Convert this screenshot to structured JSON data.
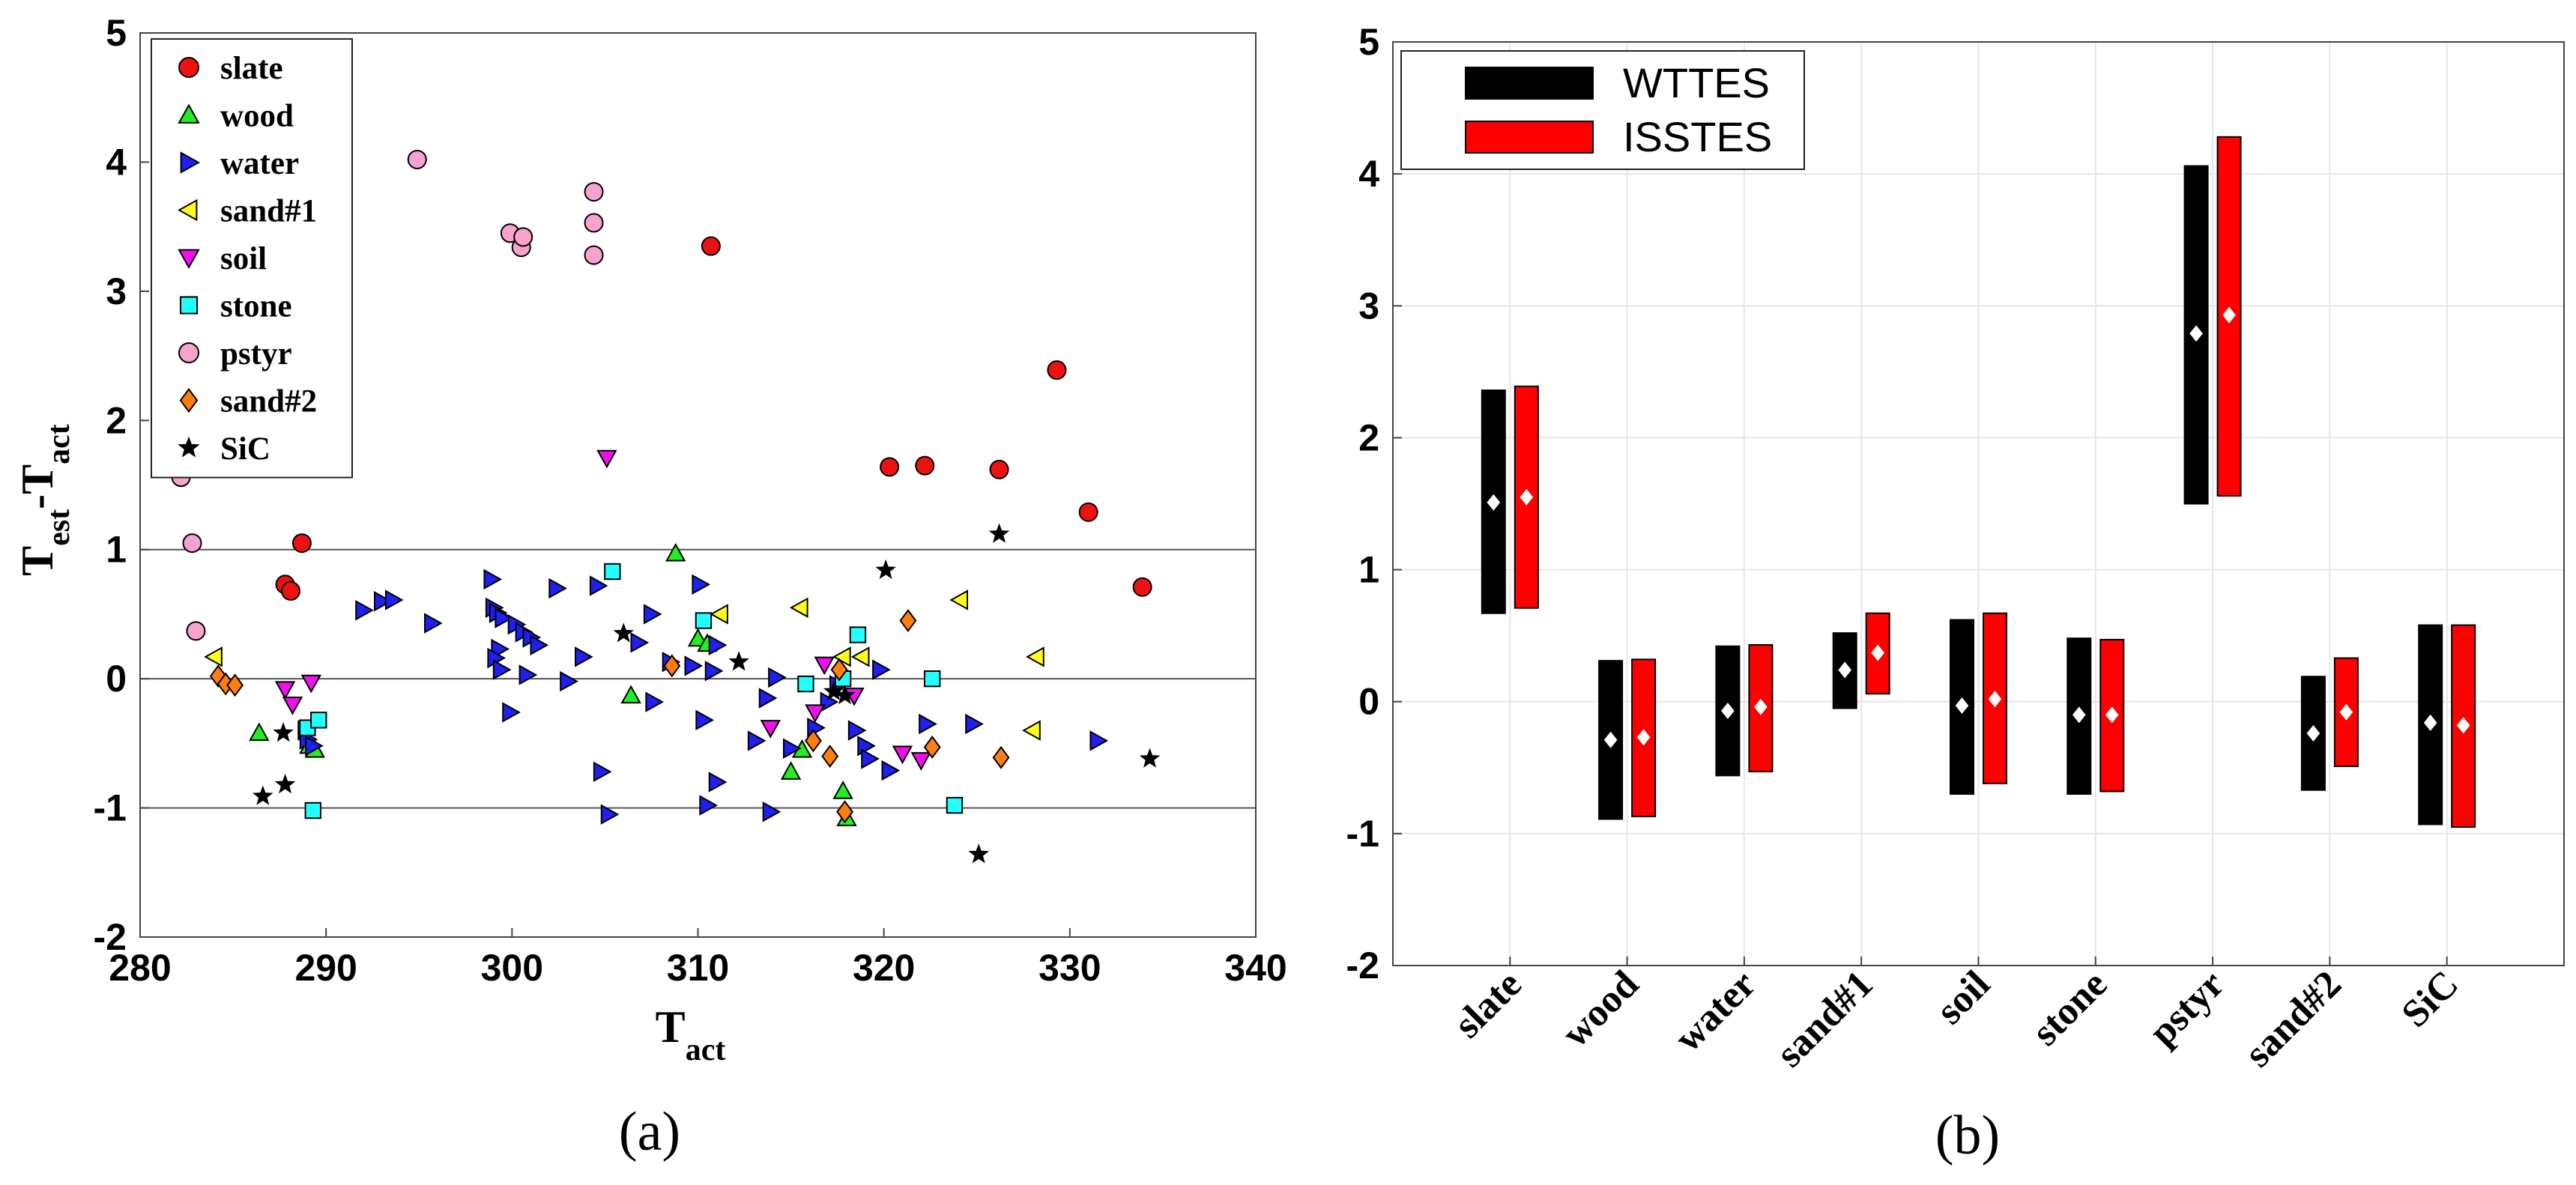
{
  "chart_data": [
    {
      "type": "scatter",
      "panel_label": "(a)",
      "xlabel": {
        "main": "T",
        "sub": "act"
      },
      "ylabel": {
        "parts": [
          {
            "t": "T"
          },
          {
            "t": "est",
            "sub": true
          },
          {
            "t": "-T"
          },
          {
            "t": "act",
            "sub": true
          }
        ]
      },
      "xlim": [
        280,
        340
      ],
      "ylim": [
        -2,
        5
      ],
      "xticks": [
        "280",
        "290",
        "300",
        "310",
        "320",
        "330",
        "340"
      ],
      "yticks": [
        "-2",
        "-1",
        "0",
        "1",
        "2",
        "3",
        "4",
        "5"
      ],
      "reference_lines": [
        -1,
        0,
        1
      ],
      "legend_position": "top-left",
      "series": [
        {
          "name": "slate",
          "marker": "circle",
          "color": "#ee1111",
          "points": [
            [
              287.8,
              0.73
            ],
            [
              288.1,
              0.68
            ],
            [
              288.7,
              1.05
            ],
            [
              310.7,
              3.35
            ],
            [
              320.3,
              1.64
            ],
            [
              322.2,
              1.65
            ],
            [
              326.2,
              1.62
            ],
            [
              329.3,
              2.39
            ],
            [
              331.0,
              1.29
            ],
            [
              333.9,
              0.71
            ]
          ]
        },
        {
          "name": "wood",
          "marker": "triangle-up",
          "color": "#22ee22",
          "points": [
            [
              286.4,
              -0.42
            ],
            [
              289.1,
              -0.52
            ],
            [
              289.4,
              -0.55
            ],
            [
              306.4,
              -0.13
            ],
            [
              308.8,
              0.97
            ],
            [
              310.0,
              0.31
            ],
            [
              310.5,
              0.27
            ],
            [
              315.0,
              -0.72
            ],
            [
              315.6,
              -0.55
            ],
            [
              317.8,
              -0.87
            ],
            [
              318.0,
              -1.08
            ]
          ]
        },
        {
          "name": "water",
          "marker": "triangle-right",
          "color": "#1f1fee",
          "points": [
            [
              288.9,
              -0.4
            ],
            [
              289.0,
              -0.47
            ],
            [
              289.3,
              -0.52
            ],
            [
              292.0,
              0.53
            ],
            [
              293.0,
              0.6
            ],
            [
              293.6,
              0.61
            ],
            [
              295.7,
              0.43
            ],
            [
              298.9,
              0.77
            ],
            [
              299.0,
              0.55
            ],
            [
              299.2,
              0.51
            ],
            [
              299.5,
              0.47
            ],
            [
              299.3,
              0.23
            ],
            [
              299.1,
              0.16
            ],
            [
              299.4,
              0.07
            ],
            [
              299.9,
              -0.26
            ],
            [
              300.2,
              0.42
            ],
            [
              300.6,
              0.36
            ],
            [
              301.0,
              0.32
            ],
            [
              301.4,
              0.26
            ],
            [
              300.8,
              0.03
            ],
            [
              302.4,
              0.7
            ],
            [
              303.8,
              0.17
            ],
            [
              304.6,
              0.72
            ],
            [
              304.8,
              -0.72
            ],
            [
              305.2,
              -1.05
            ],
            [
              306.8,
              0.28
            ],
            [
              307.6,
              -0.18
            ],
            [
              307.5,
              0.5
            ],
            [
              308.5,
              0.13
            ],
            [
              310.1,
              0.73
            ],
            [
              310.3,
              -0.32
            ],
            [
              310.5,
              -0.98
            ],
            [
              310.8,
              0.06
            ],
            [
              311.0,
              -0.8
            ],
            [
              311.0,
              0.26
            ],
            [
              313.1,
              -0.48
            ],
            [
              313.7,
              -0.15
            ],
            [
              313.9,
              -1.03
            ],
            [
              314.2,
              0.01
            ],
            [
              315.0,
              -0.54
            ],
            [
              316.3,
              -0.38
            ],
            [
              317.0,
              -0.18
            ],
            [
              317.5,
              -0.05
            ],
            [
              318.5,
              -0.4
            ],
            [
              319.0,
              -0.52
            ],
            [
              319.2,
              -0.62
            ],
            [
              319.8,
              0.07
            ],
            [
              320.3,
              -0.71
            ],
            [
              322.3,
              -0.35
            ],
            [
              324.8,
              -0.35
            ],
            [
              331.5,
              -0.48
            ],
            [
              309.7,
              0.1
            ],
            [
              303.0,
              -0.02
            ]
          ]
        },
        {
          "name": "sand#1",
          "marker": "triangle-left",
          "color": "#ffff1a",
          "points": [
            [
              284.0,
              0.17
            ],
            [
              311.2,
              0.5
            ],
            [
              315.5,
              0.55
            ],
            [
              317.8,
              0.17
            ],
            [
              318.8,
              0.17
            ],
            [
              324.1,
              0.61
            ],
            [
              328.2,
              0.17
            ],
            [
              328.0,
              -0.4
            ]
          ]
        },
        {
          "name": "soil",
          "marker": "triangle-down",
          "color": "#ee11ee",
          "points": [
            [
              287.8,
              -0.08
            ],
            [
              288.2,
              -0.2
            ],
            [
              289.2,
              -0.03
            ],
            [
              305.1,
              1.71
            ],
            [
              313.9,
              -0.38
            ],
            [
              316.3,
              -0.26
            ],
            [
              316.8,
              0.11
            ],
            [
              318.4,
              -0.13
            ],
            [
              321.0,
              -0.58
            ],
            [
              322.0,
              -0.63
            ]
          ]
        },
        {
          "name": "stone",
          "marker": "square",
          "color": "#22ffff",
          "points": [
            [
              289.0,
              -0.38
            ],
            [
              289.6,
              -0.32
            ],
            [
              289.3,
              -1.02
            ],
            [
              305.4,
              0.83
            ],
            [
              310.3,
              0.45
            ],
            [
              315.8,
              -0.04
            ],
            [
              317.8,
              0.0
            ],
            [
              318.6,
              0.34
            ],
            [
              322.6,
              0.0
            ],
            [
              323.8,
              -0.98
            ]
          ]
        },
        {
          "name": "pstyr",
          "marker": "circle",
          "color": "#f7a3cc",
          "points": [
            [
              282.2,
              1.56
            ],
            [
              282.8,
              1.05
            ],
            [
              283.0,
              0.37
            ],
            [
              294.9,
              4.02
            ],
            [
              299.9,
              3.45
            ],
            [
              300.5,
              3.34
            ],
            [
              300.6,
              3.42
            ],
            [
              304.4,
              3.77
            ],
            [
              304.4,
              3.53
            ],
            [
              304.4,
              3.28
            ]
          ]
        },
        {
          "name": "sand#2",
          "marker": "diamond",
          "color": "#ff7f0e",
          "points": [
            [
              284.2,
              0.02
            ],
            [
              284.6,
              -0.04
            ],
            [
              285.1,
              -0.05
            ],
            [
              308.6,
              0.1
            ],
            [
              316.2,
              -0.48
            ],
            [
              317.1,
              -0.6
            ],
            [
              317.6,
              0.07
            ],
            [
              317.9,
              -1.03
            ],
            [
              321.3,
              0.45
            ],
            [
              322.6,
              -0.53
            ],
            [
              326.3,
              -0.61
            ]
          ]
        },
        {
          "name": "SiC",
          "marker": "star",
          "color": "#000000",
          "points": [
            [
              286.6,
              -0.91
            ],
            [
              287.7,
              -0.42
            ],
            [
              287.8,
              -0.82
            ],
            [
              306.0,
              0.35
            ],
            [
              312.2,
              0.13
            ],
            [
              317.3,
              -0.1
            ],
            [
              317.9,
              -0.13
            ],
            [
              320.1,
              0.84
            ],
            [
              325.1,
              -1.36
            ],
            [
              326.2,
              1.12
            ],
            [
              334.3,
              -0.62
            ]
          ]
        }
      ]
    },
    {
      "type": "bar",
      "subtype": "range-bar",
      "panel_label": "(b)",
      "categories": [
        "slate",
        "wood",
        "water",
        "sand#1",
        "soil",
        "stone",
        "pstyr",
        "sand#2",
        "SiC"
      ],
      "ylim": [
        -2,
        5
      ],
      "yticks": [
        "-2",
        "-1",
        "0",
        "1",
        "2",
        "3",
        "4",
        "5"
      ],
      "legend_position": "top-left",
      "series": [
        {
          "name": "WTTES",
          "color": "#000000",
          "marker_color": "#ffffff",
          "min": [
            0.67,
            -0.89,
            -0.56,
            -0.05,
            -0.7,
            -0.7,
            1.5,
            -0.67,
            -0.93
          ],
          "max": [
            2.36,
            0.31,
            0.42,
            0.52,
            0.62,
            0.48,
            4.06,
            0.19,
            0.58
          ],
          "mean": [
            1.51,
            -0.29,
            -0.07,
            0.24,
            -0.03,
            -0.1,
            2.79,
            -0.24,
            -0.16
          ]
        },
        {
          "name": "ISSTES",
          "color": "#ff0000",
          "marker_color": "#ffffff",
          "min": [
            0.71,
            -0.87,
            -0.53,
            0.06,
            -0.62,
            -0.68,
            1.56,
            -0.49,
            -0.95
          ],
          "max": [
            2.39,
            0.32,
            0.43,
            0.67,
            0.67,
            0.47,
            4.28,
            0.33,
            0.58
          ],
          "mean": [
            1.55,
            -0.27,
            -0.04,
            0.37,
            0.02,
            -0.1,
            2.93,
            -0.08,
            -0.18
          ]
        }
      ]
    }
  ]
}
